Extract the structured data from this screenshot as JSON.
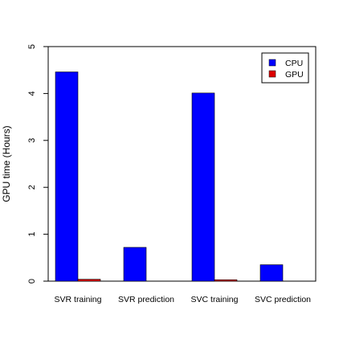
{
  "chart_data": {
    "type": "bar",
    "categories": [
      "SVR training",
      "SVR prediction",
      "SVC training",
      "SVC prediction"
    ],
    "series": [
      {
        "name": "CPU",
        "color": "#0000ff",
        "values": [
          4.46,
          0.72,
          4.01,
          0.35
        ]
      },
      {
        "name": "GPU",
        "color": "#dd0000",
        "values": [
          0.04,
          0.0,
          0.03,
          0.0
        ]
      }
    ],
    "ylabel": "GPU time (Hours)",
    "ylim": [
      0,
      5
    ],
    "yticks": [
      0,
      1,
      2,
      3,
      4,
      5
    ],
    "legend_position": "top-right",
    "grid": false
  }
}
